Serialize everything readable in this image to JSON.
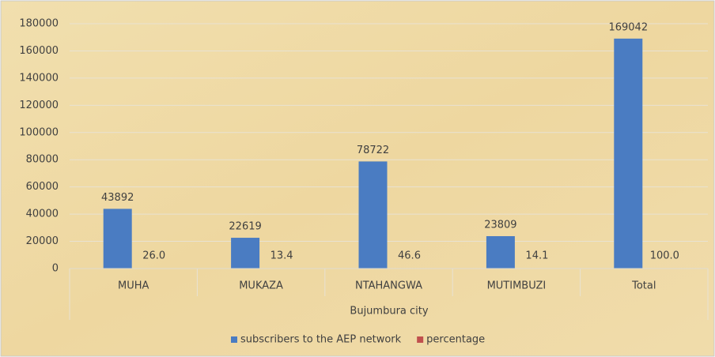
{
  "chart_data": {
    "type": "bar",
    "x_label": "Bujumbura city",
    "categories": [
      "MUHA",
      "MUKAZA",
      "NTAHANGWA",
      "MUTIMBUZI",
      "Total"
    ],
    "series": [
      {
        "name": "subscribers to the AEP network",
        "color": "#4a7cc2",
        "values": [
          43892,
          22619,
          78722,
          23809,
          169042
        ]
      },
      {
        "name": "percentage",
        "color": "#c0504d",
        "values": [
          26,
          13.4,
          46.6,
          14.1,
          100
        ],
        "value_labels": [
          "26.0",
          "13.4",
          "46.6",
          "14.1",
          "100.0"
        ]
      }
    ],
    "ylim": [
      0,
      180000
    ],
    "yticks": [
      0,
      20000,
      40000,
      60000,
      80000,
      100000,
      120000,
      140000,
      160000,
      180000
    ],
    "grid": true,
    "legend": "bottom"
  }
}
